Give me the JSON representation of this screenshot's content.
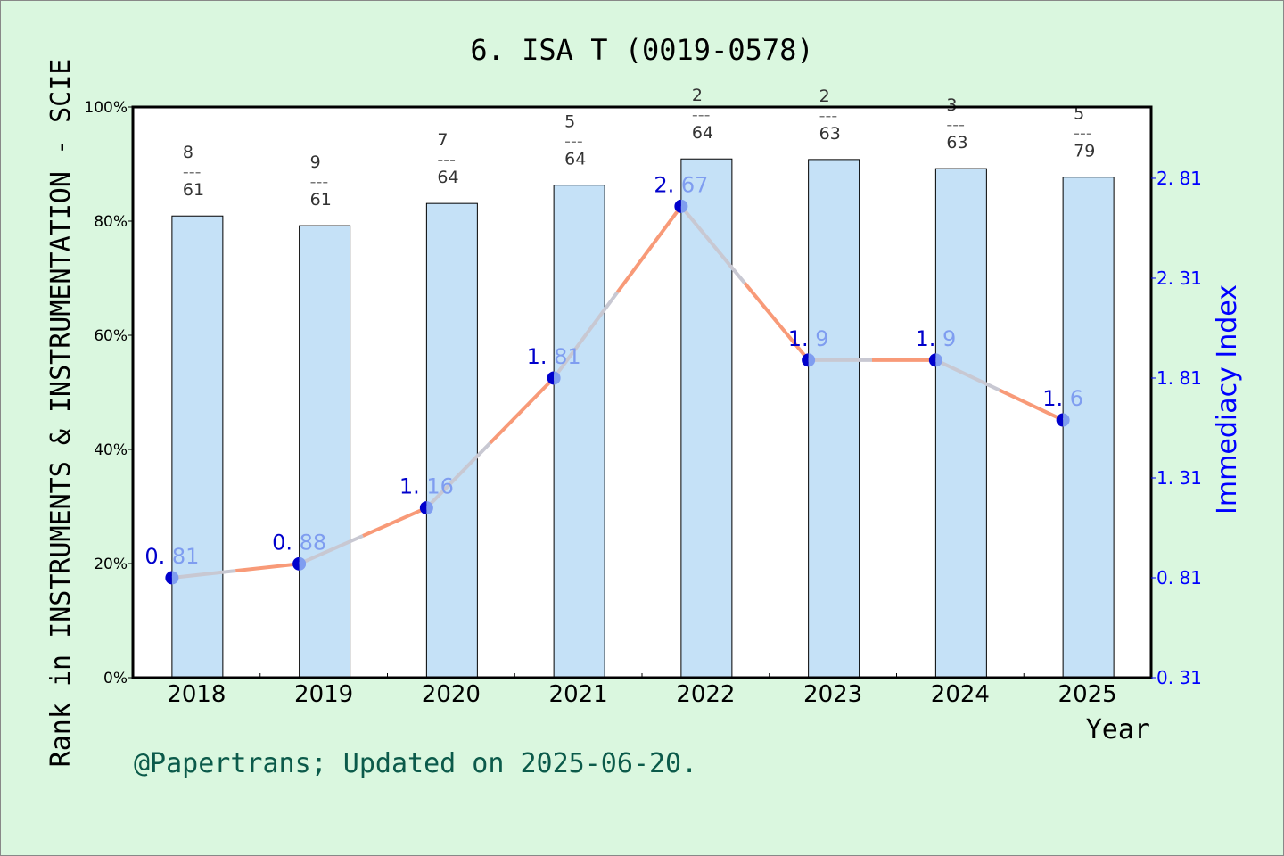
{
  "chart_data": {
    "type": "bar+line",
    "title": "6. ISA T (0019-0578)",
    "xlabel": "Year",
    "ylabel_left": "Rank in INSTRUMENTS & INSTRUMENTATION - SCIE",
    "ylabel_right": "Immediacy Index",
    "footer": "@Papertrans; Updated on 2025-06-20.",
    "categories": [
      "2018",
      "2019",
      "2020",
      "2021",
      "2022",
      "2023",
      "2024",
      "2025"
    ],
    "bar_values_percent": [
      80.9,
      79.2,
      83.1,
      86.3,
      90.9,
      90.8,
      89.2,
      87.7
    ],
    "rank_labels": [
      {
        "rank": "8",
        "total": "61"
      },
      {
        "rank": "9",
        "total": "61"
      },
      {
        "rank": "7",
        "total": "64"
      },
      {
        "rank": "5",
        "total": "64"
      },
      {
        "rank": "2",
        "total": "64"
      },
      {
        "rank": "2",
        "total": "63"
      },
      {
        "rank": "3",
        "total": "63"
      },
      {
        "rank": "5",
        "total": "79"
      }
    ],
    "rank_separator": "---",
    "line_values": [
      0.81,
      0.88,
      1.16,
      1.81,
      2.67,
      1.9,
      1.9,
      1.6
    ],
    "ylim_left": [
      0,
      100
    ],
    "yticks_left": [
      "0%",
      "20%",
      "40%",
      "60%",
      "80%",
      "100%"
    ],
    "ylim_right": [
      0.31,
      3.167
    ],
    "yticks_right": [
      "0. 31",
      "0. 81",
      "1. 31",
      "1. 81",
      "2. 31",
      "2. 81"
    ],
    "yticks_right_values": [
      0.31,
      0.81,
      1.31,
      1.81,
      2.31,
      2.81
    ],
    "grid": false,
    "colors": {
      "background": "#daf7df",
      "bar_fill": "#c5e1f7",
      "line_first_half": "#c8c8d2",
      "line_second_half": "#f89a78",
      "point_dark": "#0000cc",
      "point_light": "#7f9df0",
      "right_axis": "#0000ff",
      "footer": "#0b5a4a"
    }
  }
}
